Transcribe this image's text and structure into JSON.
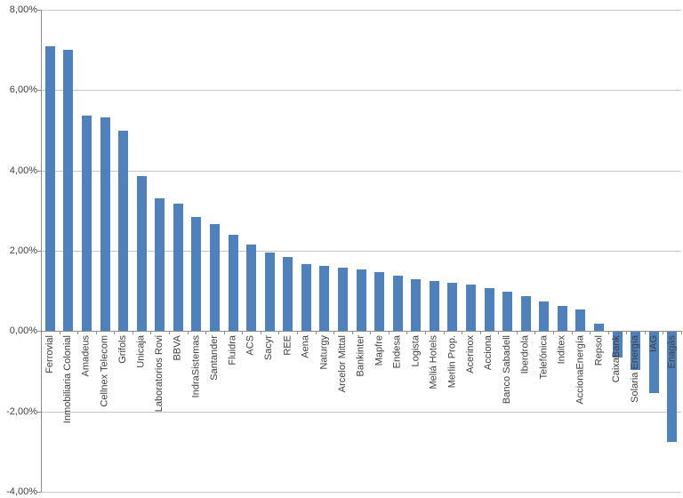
{
  "chart_data": {
    "type": "bar",
    "title": "",
    "xlabel": "",
    "ylabel": "",
    "categories": [
      "Ferrovial",
      "Inmobiliaria Colonial",
      "Amadeus",
      "Cellnex Telecom",
      "Grifols",
      "Unicaja",
      "Laboratorios Rovi",
      "BBVA",
      "IndraSistemas",
      "Santander",
      "Fluidra",
      "ACS",
      "Sacyr",
      "REE",
      "Aena",
      "Naturgy",
      "Arcelor Mittal",
      "Bankinter",
      "Mapfre",
      "Endesa",
      "Logista",
      "Meliá Hotels",
      "Merlin Prop.",
      "Acerinox",
      "Acciona",
      "Banco Sabadell",
      "Iberdrola",
      "Telefónica",
      "Inditex",
      "AccionaEnergía",
      "Repsol",
      "CaixaBank",
      "Solaria Energía",
      "IAG",
      "Enagás"
    ],
    "values": [
      7.1,
      7.0,
      5.37,
      5.33,
      5.0,
      3.87,
      3.3,
      3.18,
      2.85,
      2.67,
      2.41,
      2.16,
      1.96,
      1.84,
      1.66,
      1.63,
      1.59,
      1.54,
      1.47,
      1.38,
      1.3,
      1.24,
      1.21,
      1.15,
      1.08,
      0.99,
      0.87,
      0.73,
      0.63,
      0.55,
      0.19,
      -0.66,
      -0.97,
      -1.55,
      -2.77
    ],
    "ylim": [
      -4,
      8
    ],
    "y_ticks": [
      8,
      6,
      4,
      2,
      0,
      -2,
      -4
    ],
    "y_tick_labels": [
      "8,00%",
      "6,00%",
      "4,00%",
      "2,00%",
      "0,00%",
      "-2,00%",
      "-4,00%"
    ],
    "grid": true,
    "legend": false,
    "bar_color": "#4F81BD",
    "gridline_color": "#C6C6C6",
    "axis_color": "#8C8C8C",
    "label_color": "#3F3F3F"
  }
}
